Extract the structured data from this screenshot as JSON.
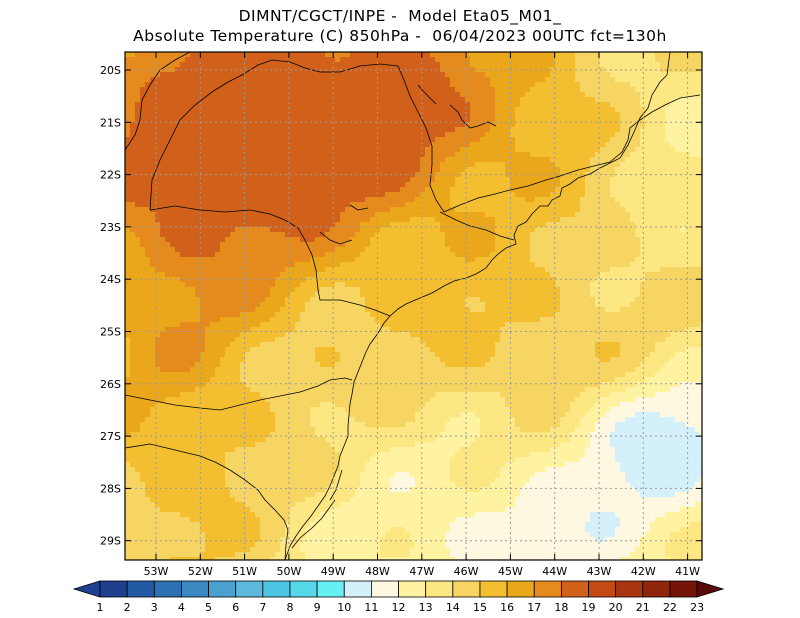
{
  "header": {
    "line1": "DIMNT/CGCT/INPE -  Model Eta05_M01_",
    "line2": "Absolute Temperature (C) 850hPa -  06/04/2023 00UTC fct=130h"
  },
  "map": {
    "lat_labels": [
      "20S",
      "21S",
      "22S",
      "23S",
      "24S",
      "25S",
      "26S",
      "27S",
      "28S",
      "29S"
    ],
    "lon_labels": [
      "53W",
      "52W",
      "51W",
      "50W",
      "49W",
      "48W",
      "47W",
      "46W",
      "45W",
      "44W",
      "43W",
      "42W",
      "41W"
    ],
    "field_levels": [
      {
        "lt": 11,
        "color": "#d4f0fb"
      },
      {
        "lt": 12,
        "color": "#fff8e1"
      },
      {
        "lt": 13,
        "color": "#fff2a0"
      },
      {
        "lt": 14,
        "color": "#fde783"
      },
      {
        "lt": 15,
        "color": "#f7d563"
      },
      {
        "lt": 16,
        "color": "#f3be2f"
      },
      {
        "lt": 17,
        "color": "#eba71c"
      },
      {
        "lt": 18,
        "color": "#e58a1d"
      },
      {
        "lt": 99,
        "color": "#d1611a"
      }
    ]
  },
  "colorbar": {
    "labels": [
      "1",
      "2",
      "3",
      "4",
      "5",
      "6",
      "7",
      "8",
      "9",
      "10",
      "11",
      "12",
      "13",
      "14",
      "15",
      "16",
      "17",
      "18",
      "19",
      "20",
      "21",
      "22",
      "23"
    ],
    "colors": [
      "#1f3f8f",
      "#235aa3",
      "#2b71b3",
      "#3a89c2",
      "#4aa1cf",
      "#5cb9db",
      "#4cc6e3",
      "#56d7ea",
      "#67f0f4",
      "#d4f0fb",
      "#fff8e1",
      "#fff2a0",
      "#fde783",
      "#f7d563",
      "#f3be2f",
      "#eba71c",
      "#e58a1d",
      "#d1611a",
      "#c34a13",
      "#a8370f",
      "#8f260c",
      "#75150a"
    ]
  }
}
